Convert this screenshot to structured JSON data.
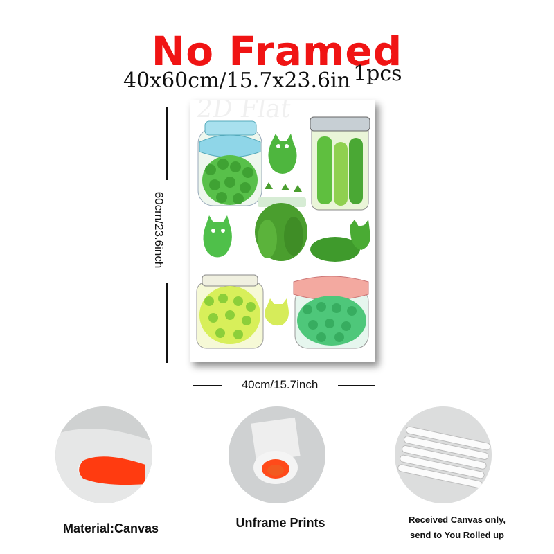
{
  "header": {
    "title": "No Framed",
    "size_text": "40x60cm/15.7x23.6in",
    "quantity": "1pcs"
  },
  "poster": {
    "watermark": "2D Flat"
  },
  "dimensions": {
    "height_label": "60cm/23.6inch",
    "width_label": "40cm/15.7inch"
  },
  "features": [
    {
      "caption": "Material:Canvas"
    },
    {
      "caption": "Unframe  Prints"
    },
    {
      "caption_line1": "Received Canvas only,",
      "caption_line2": "send to You Rolled up"
    }
  ],
  "colors": {
    "title": "#f01414",
    "accent_orange": "#ff3b10",
    "jar_green": "#5cc44a"
  }
}
